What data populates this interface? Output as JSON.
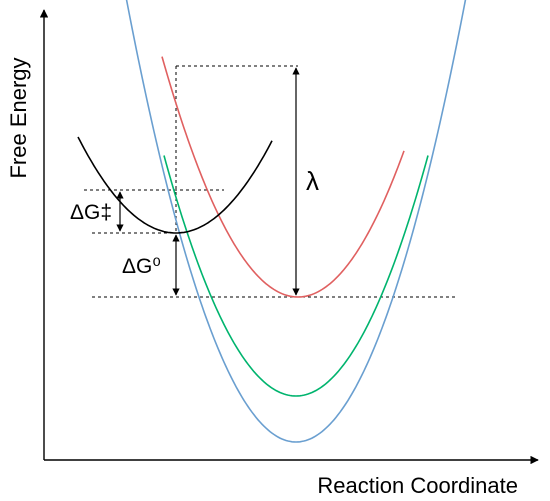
{
  "axes": {
    "x_label": "Reaction Coordinate",
    "y_label": "Free Energy"
  },
  "annotations": {
    "activation_energy": "ΔG‡",
    "reaction_free_energy": "ΔG⁰",
    "reorganization_energy": "λ"
  },
  "curves": [
    {
      "id": "reactant",
      "color": "#000000"
    },
    {
      "id": "product-red",
      "color": "#e06060"
    },
    {
      "id": "product-green",
      "color": "#00b46e"
    },
    {
      "id": "product-blue",
      "color": "#6a9fd0"
    }
  ]
}
